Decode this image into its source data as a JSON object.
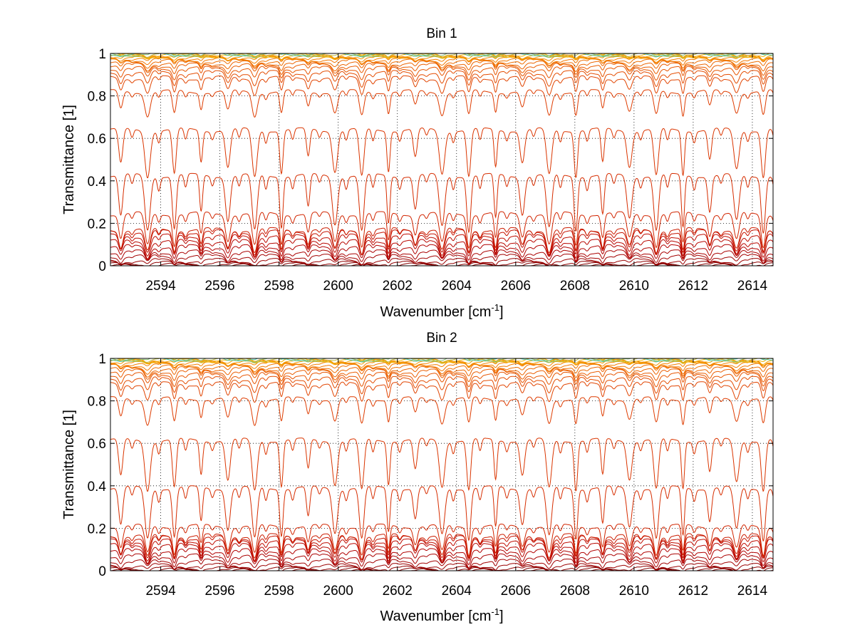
{
  "chart_data": [
    {
      "type": "line",
      "title": "Bin 1",
      "xlabel": "Wavenumber [cm",
      "xlabel_sup": "-1",
      "xlabel_end": "]",
      "ylabel": "Transmittance [1]",
      "xlim": [
        2592.3,
        2614.7
      ],
      "ylim": [
        0,
        1
      ],
      "xticks": [
        2594,
        2596,
        2598,
        2600,
        2602,
        2604,
        2606,
        2608,
        2610,
        2612,
        2614
      ],
      "yticks": [
        0,
        0.2,
        0.4,
        0.6,
        0.8,
        1
      ],
      "ytick_labels": [
        "0",
        "0.2",
        "0.4",
        "0.6",
        "0.8",
        "1"
      ],
      "grid": true,
      "series_count": 30,
      "series_levels": [
        0.0,
        0.005,
        0.012,
        0.025,
        0.045,
        0.065,
        0.09,
        0.115,
        0.14,
        0.16,
        0.17,
        0.245,
        0.425,
        0.64,
        0.82,
        0.885,
        0.91,
        0.93,
        0.945,
        0.955,
        0.965,
        0.972,
        0.978,
        0.983,
        0.987,
        0.99,
        0.993,
        0.995,
        0.997,
        0.999
      ],
      "line_pattern": "periodic absorption dips approx. every 0.9 cm-1 across all series",
      "colors": [
        "#7a0000",
        "#9a0000",
        "#b00000",
        "#c41000",
        "#d42a00",
        "#e04000",
        "#e85800",
        "#f07000",
        "#f58a00",
        "#f2b400",
        "#4fc7a8"
      ]
    },
    {
      "type": "line",
      "title": "Bin 2",
      "xlabel": "Wavenumber [cm",
      "xlabel_sup": "-1",
      "xlabel_end": "]",
      "ylabel": "Transmittance [1]",
      "xlim": [
        2592.3,
        2614.7
      ],
      "ylim": [
        0,
        1
      ],
      "xticks": [
        2594,
        2596,
        2598,
        2600,
        2602,
        2604,
        2606,
        2608,
        2610,
        2612,
        2614
      ],
      "yticks": [
        0,
        0.2,
        0.4,
        0.6,
        0.8,
        1
      ],
      "ytick_labels": [
        "0",
        "0.2",
        "0.4",
        "0.6",
        "0.8",
        "1"
      ],
      "grid": true,
      "series_count": 30,
      "series_levels": [
        0.0,
        0.005,
        0.012,
        0.025,
        0.045,
        0.07,
        0.095,
        0.12,
        0.14,
        0.155,
        0.165,
        0.21,
        0.39,
        0.615,
        0.81,
        0.88,
        0.905,
        0.925,
        0.94,
        0.952,
        0.962,
        0.97,
        0.977,
        0.982,
        0.986,
        0.99,
        0.993,
        0.995,
        0.997,
        0.999
      ],
      "line_pattern": "periodic absorption dips approx. every 0.9 cm-1 across all series",
      "colors": [
        "#7a0000",
        "#9a0000",
        "#b00000",
        "#c41000",
        "#d42a00",
        "#e04000",
        "#e85800",
        "#f07000",
        "#f58a00",
        "#f2b400",
        "#4fc7a8"
      ]
    }
  ]
}
